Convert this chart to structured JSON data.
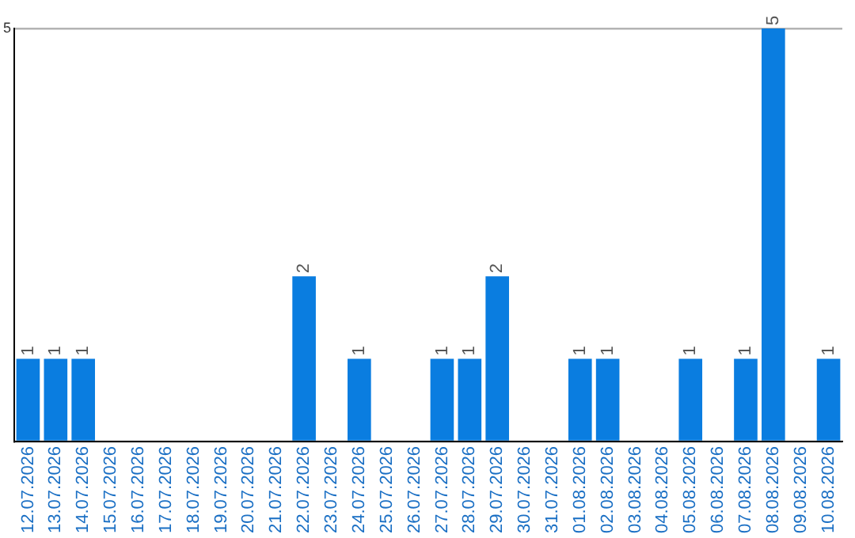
{
  "chart_data": {
    "type": "bar",
    "categories": [
      "12.07.2026",
      "13.07.2026",
      "14.07.2026",
      "15.07.2026",
      "16.07.2026",
      "17.07.2026",
      "18.07.2026",
      "19.07.2026",
      "20.07.2026",
      "21.07.2026",
      "22.07.2026",
      "23.07.2026",
      "24.07.2026",
      "25.07.2026",
      "26.07.2026",
      "27.07.2026",
      "28.07.2026",
      "29.07.2026",
      "30.07.2026",
      "31.07.2026",
      "01.08.2026",
      "02.08.2026",
      "03.08.2026",
      "04.08.2026",
      "05.08.2026",
      "06.08.2026",
      "07.08.2026",
      "08.08.2026",
      "09.08.2026",
      "10.08.2026"
    ],
    "values": [
      1,
      1,
      1,
      0,
      0,
      0,
      0,
      0,
      0,
      0,
      2,
      0,
      1,
      0,
      0,
      1,
      1,
      2,
      0,
      0,
      1,
      1,
      0,
      0,
      1,
      0,
      1,
      5,
      0,
      1
    ],
    "value_labels": [
      "1",
      "1",
      "1",
      null,
      null,
      null,
      null,
      null,
      null,
      null,
      "2",
      null,
      "1",
      null,
      null,
      "1",
      "1",
      "2",
      null,
      null,
      "1",
      "1",
      null,
      null,
      "1",
      null,
      "1",
      "5",
      null,
      "1"
    ],
    "color": "#0a7de0",
    "ylim": [
      0,
      5
    ],
    "yticks": [
      {
        "value": 0,
        "label": null
      },
      5
    ],
    "grid": "y",
    "legend": false
  }
}
